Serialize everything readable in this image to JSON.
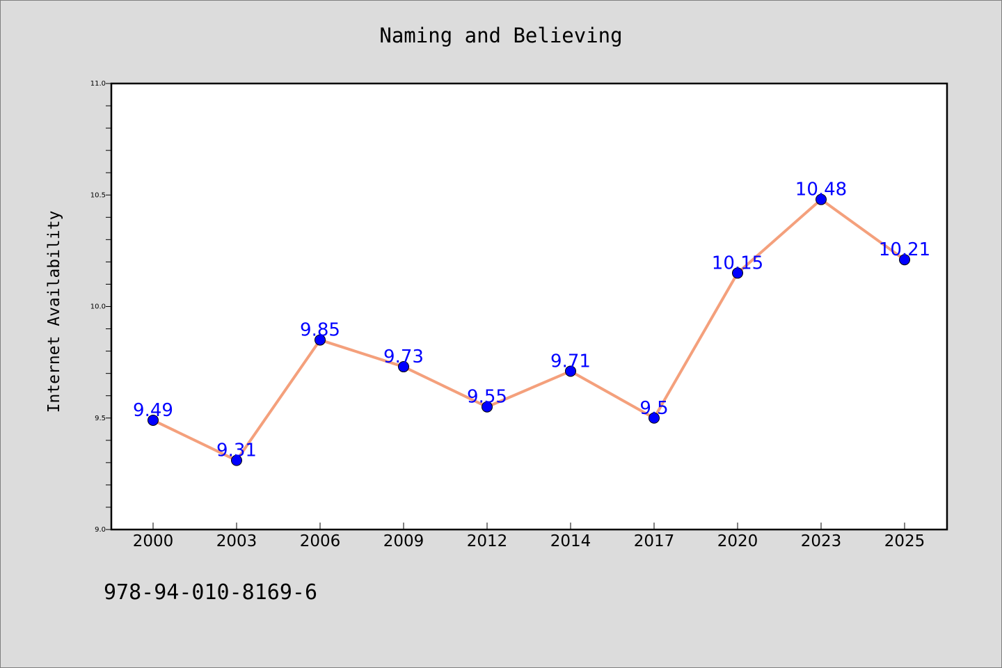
{
  "chart_data": {
    "type": "line",
    "title": "Naming and Believing",
    "xlabel": "",
    "ylabel": "Internet Availability",
    "categories": [
      "2000",
      "2003",
      "2006",
      "2009",
      "2012",
      "2014",
      "2017",
      "2020",
      "2023",
      "2025"
    ],
    "values": [
      9.49,
      9.31,
      9.85,
      9.73,
      9.55,
      9.71,
      9.5,
      10.15,
      10.48,
      10.21
    ],
    "data_labels": [
      "9.49",
      "9.31",
      "9.85",
      "9.73",
      "9.55",
      "9.71",
      "9.5",
      "10.15",
      "10.48",
      "10.21"
    ],
    "ylim": [
      9.0,
      11.0
    ],
    "yticks": [
      "9.0",
      "9.5",
      "10.0",
      "10.5",
      "11.0"
    ],
    "grid": false,
    "legend": "none",
    "line_color": "#f4a07c",
    "marker_color": "#0000ff",
    "label_color": "#0000ff"
  },
  "footer": {
    "isbn": "978-94-010-8169-6"
  }
}
